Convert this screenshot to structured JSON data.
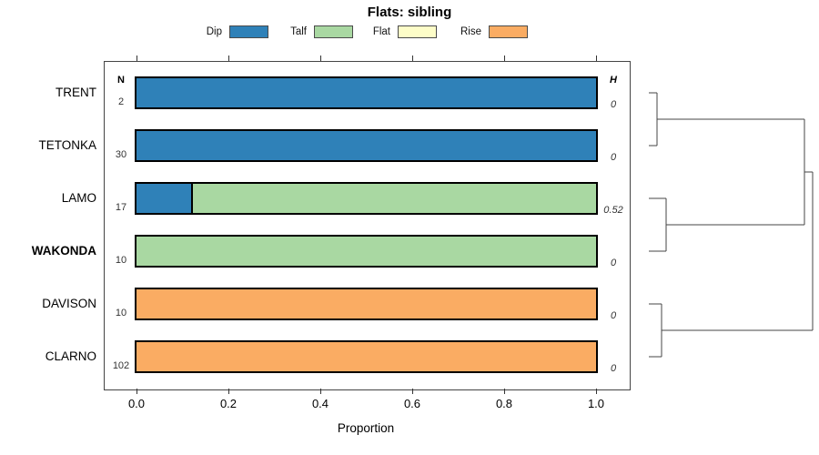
{
  "chart_data": {
    "type": "bar",
    "variant": "horizontal-stacked-proportion-with-dendrogram",
    "title": "Flats: sibling",
    "xlabel": "Proportion",
    "xlim": [
      0,
      1
    ],
    "xticks": [
      "0.0",
      "0.2",
      "0.4",
      "0.6",
      "0.8",
      "1.0"
    ],
    "grid": false,
    "legend_position": "top",
    "legend": [
      {
        "label": "Dip",
        "color": "#2F81B8"
      },
      {
        "label": "Talf",
        "color": "#A9D8A2"
      },
      {
        "label": "Flat",
        "color": "#FDFDC8"
      },
      {
        "label": "Rise",
        "color": "#FAAC63"
      }
    ],
    "columns": {
      "n_header": "N",
      "h_header": "H"
    },
    "rows": [
      {
        "label": "TRENT",
        "bold": false,
        "n": "2",
        "h": "0",
        "segments": [
          {
            "category": "Dip",
            "value": 1.0
          }
        ]
      },
      {
        "label": "TETONKA",
        "bold": false,
        "n": "30",
        "h": "0",
        "segments": [
          {
            "category": "Dip",
            "value": 1.0
          }
        ]
      },
      {
        "label": "LAMO",
        "bold": false,
        "n": "17",
        "h": "0.52",
        "segments": [
          {
            "category": "Dip",
            "value": 0.118
          },
          {
            "category": "Talf",
            "value": 0.882
          }
        ]
      },
      {
        "label": "WAKONDA",
        "bold": true,
        "n": "10",
        "h": "0",
        "segments": [
          {
            "category": "Talf",
            "value": 1.0
          }
        ]
      },
      {
        "label": "DAVISON",
        "bold": false,
        "n": "10",
        "h": "0",
        "segments": [
          {
            "category": "Rise",
            "value": 1.0
          }
        ]
      },
      {
        "label": "CLARNO",
        "bold": false,
        "n": "102",
        "h": "0",
        "segments": [
          {
            "category": "Rise",
            "value": 1.0
          }
        ]
      }
    ],
    "dendrogram": {
      "position": "right",
      "merges": [
        {
          "members": [
            "TRENT",
            "TETONKA"
          ]
        },
        {
          "members": [
            "LAMO",
            "WAKONDA"
          ]
        },
        {
          "members": [
            "DAVISON",
            "CLARNO"
          ]
        },
        {
          "members": [
            "TRENT+TETONKA",
            "LAMO+WAKONDA"
          ]
        },
        {
          "members": [
            "TRENT+TETONKA+LAMO+WAKONDA",
            "DAVISON+CLARNO"
          ]
        }
      ]
    }
  }
}
